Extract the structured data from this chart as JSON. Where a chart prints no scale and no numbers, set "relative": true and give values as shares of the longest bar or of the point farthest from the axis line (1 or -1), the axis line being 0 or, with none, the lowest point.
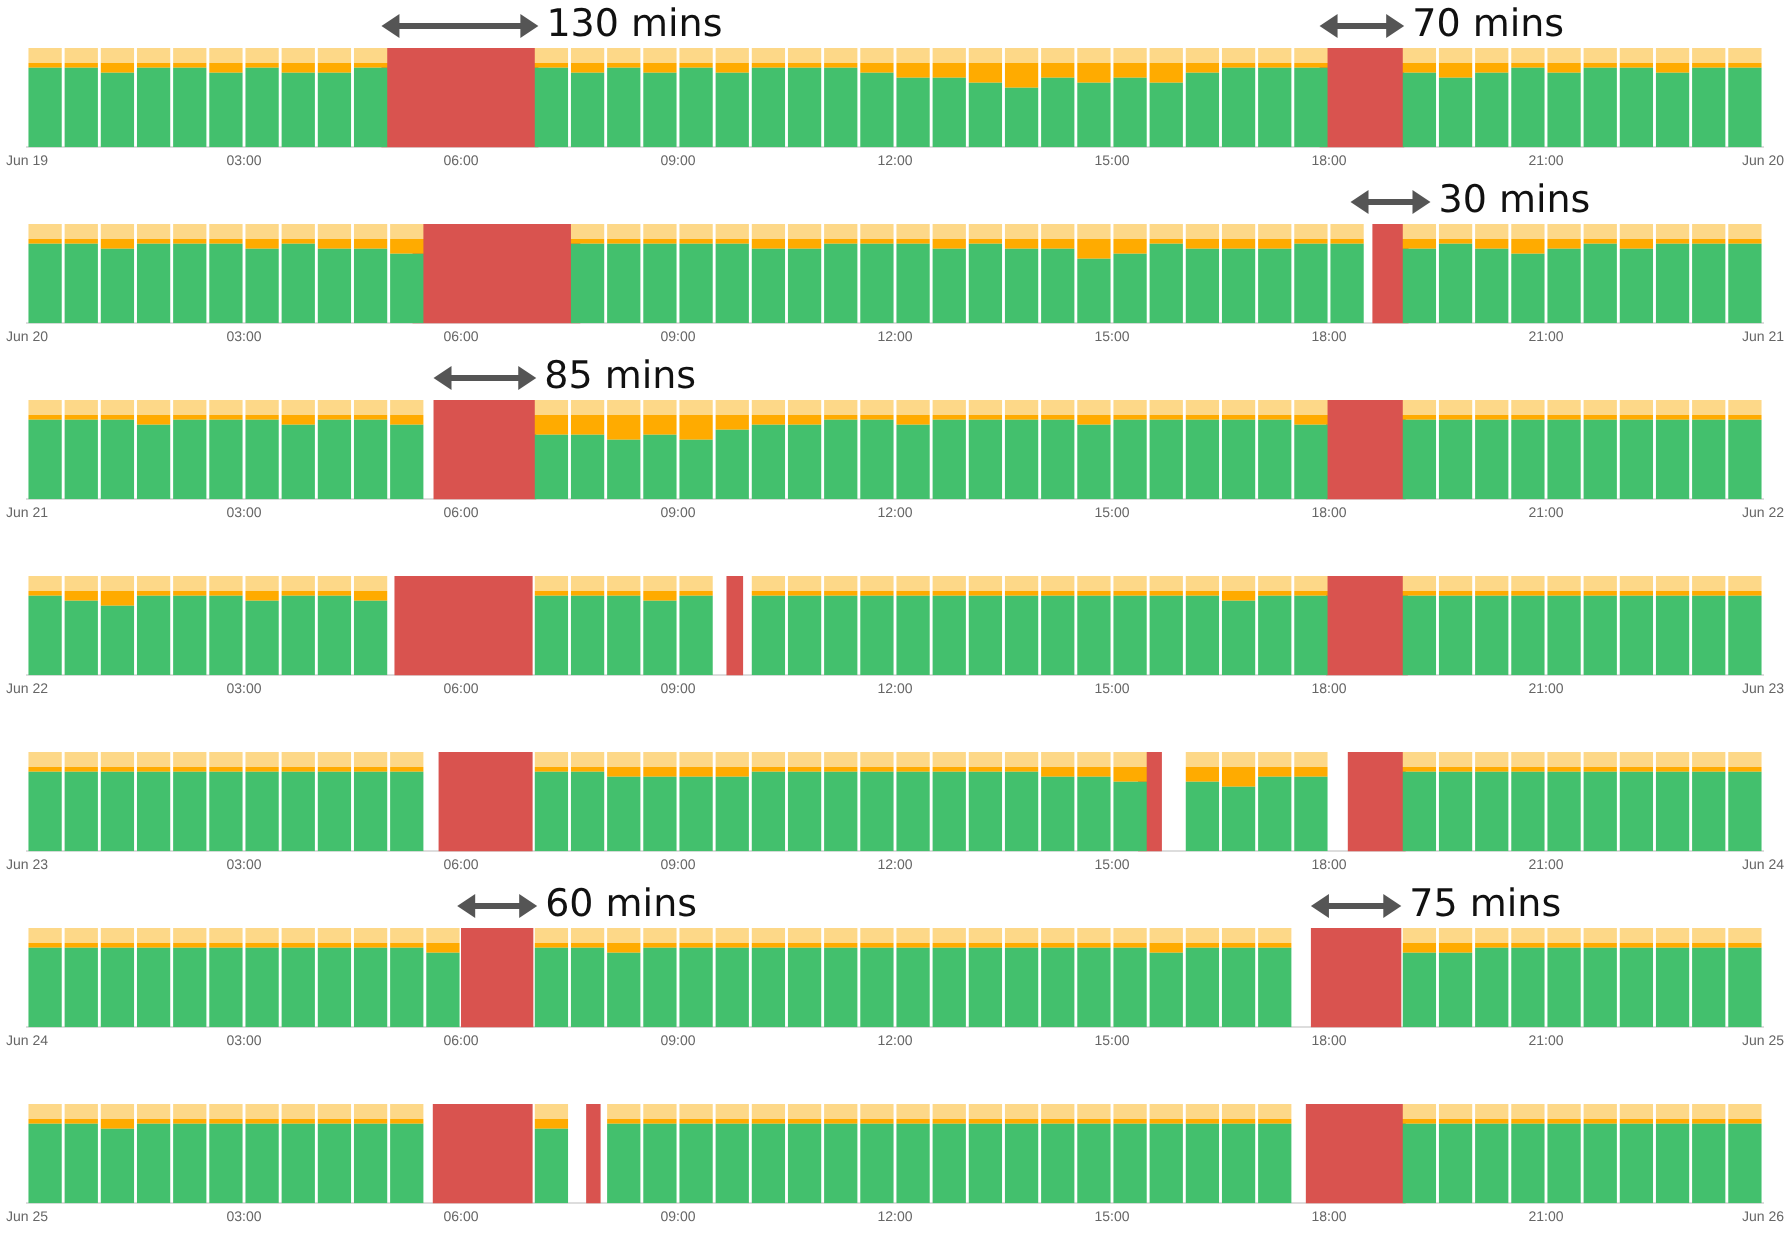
{
  "chart_data": [
    {
      "type": "bar",
      "stacked": true,
      "relative": true,
      "xlim": [
        0,
        24
      ],
      "xticks": [
        {
          "value": 0,
          "label": "Jun 19"
        },
        {
          "value": 3,
          "label": "03:00"
        },
        {
          "value": 6,
          "label": "06:00"
        },
        {
          "value": 9,
          "label": "09:00"
        },
        {
          "value": 12,
          "label": "12:00"
        },
        {
          "value": 15,
          "label": "15:00"
        },
        {
          "value": 18,
          "label": "18:00"
        },
        {
          "value": 21,
          "label": "21:00"
        },
        {
          "value": 24,
          "label": "Jun 20"
        }
      ],
      "x": [
        0.25,
        0.75,
        1.25,
        1.75,
        2.25,
        2.75,
        3.25,
        3.75,
        4.25,
        4.75,
        5.25,
        5.75,
        6.25,
        6.75,
        7.25,
        7.75,
        8.25,
        8.75,
        9.25,
        9.75,
        10.25,
        10.75,
        11.25,
        11.75,
        12.25,
        12.75,
        13.25,
        13.75,
        14.25,
        14.75,
        15.25,
        15.75,
        16.25,
        16.75,
        17.25,
        17.75,
        18.25,
        18.75,
        19.25,
        19.75,
        20.25,
        20.75,
        21.25,
        21.75,
        22.25,
        22.75,
        23.25,
        23.75
      ],
      "bands": [
        {
          "axis": "x",
          "from": 4.9,
          "to": 7.07,
          "label": "130 mins",
          "color": "#d9534f"
        },
        {
          "axis": "x",
          "from": 17.87,
          "to": 19.04,
          "label": "70 mins",
          "color": "#d9534f"
        }
      ],
      "series": [
        {
          "color": "#43c06d",
          "values": [
            0.8,
            0.8,
            0.75,
            0.8,
            0.8,
            0.75,
            0.8,
            0.75,
            0.75,
            0.8,
            null,
            null,
            null,
            null,
            0.8,
            0.75,
            0.8,
            0.75,
            0.8,
            0.75,
            0.8,
            0.8,
            0.8,
            0.75,
            0.7,
            0.7,
            0.65,
            0.6,
            0.7,
            0.65,
            0.7,
            0.65,
            0.75,
            0.8,
            0.8,
            0.8,
            null,
            null,
            0.75,
            0.7,
            0.75,
            0.8,
            0.75,
            0.8,
            0.8,
            0.75,
            0.8,
            0.8
          ]
        },
        {
          "color": "#ffab00",
          "values": [
            0.05,
            0.05,
            0.1,
            0.05,
            0.05,
            0.1,
            0.05,
            0.1,
            0.1,
            0.05,
            null,
            null,
            null,
            null,
            0.05,
            0.1,
            0.05,
            0.1,
            0.05,
            0.1,
            0.05,
            0.05,
            0.05,
            0.1,
            0.15,
            0.15,
            0.2,
            0.25,
            0.15,
            0.2,
            0.15,
            0.2,
            0.1,
            0.05,
            0.05,
            0.05,
            null,
            null,
            0.1,
            0.15,
            0.1,
            0.05,
            0.1,
            0.05,
            0.05,
            0.1,
            0.05,
            0.05
          ]
        },
        {
          "color": "#fdd888",
          "values": [
            0.15,
            0.15,
            0.15,
            0.15,
            0.15,
            0.15,
            0.15,
            0.15,
            0.15,
            0.15,
            null,
            null,
            null,
            null,
            0.15,
            0.15,
            0.15,
            0.15,
            0.15,
            0.15,
            0.15,
            0.15,
            0.15,
            0.15,
            0.15,
            0.15,
            0.15,
            0.15,
            0.15,
            0.15,
            0.15,
            0.15,
            0.15,
            0.15,
            0.15,
            0.15,
            null,
            null,
            0.15,
            0.15,
            0.15,
            0.15,
            0.15,
            0.15,
            0.15,
            0.15,
            0.15,
            0.15
          ]
        }
      ]
    },
    {
      "type": "bar",
      "stacked": true,
      "relative": true,
      "xlim": [
        0,
        24
      ],
      "xticks": [
        {
          "value": 0,
          "label": "Jun 20"
        },
        {
          "value": 3,
          "label": "03:00"
        },
        {
          "value": 6,
          "label": "06:00"
        },
        {
          "value": 9,
          "label": "09:00"
        },
        {
          "value": 12,
          "label": "12:00"
        },
        {
          "value": 15,
          "label": "15:00"
        },
        {
          "value": 18,
          "label": "18:00"
        },
        {
          "value": 21,
          "label": "21:00"
        },
        {
          "value": 24,
          "label": "Jun 21"
        }
      ],
      "x": [
        0.25,
        0.75,
        1.25,
        1.75,
        2.25,
        2.75,
        3.25,
        3.75,
        4.25,
        4.75,
        5.25,
        5.75,
        6.25,
        6.75,
        7.25,
        7.75,
        8.25,
        8.75,
        9.25,
        9.75,
        10.25,
        10.75,
        11.25,
        11.75,
        12.25,
        12.75,
        13.25,
        13.75,
        14.25,
        14.75,
        15.25,
        15.75,
        16.25,
        16.75,
        17.25,
        17.75,
        18.25,
        18.75,
        19.25,
        19.75,
        20.25,
        20.75,
        21.25,
        21.75,
        22.25,
        22.75,
        23.25,
        23.75
      ],
      "bands": [
        {
          "axis": "x",
          "from": 5.33,
          "to": 7.65,
          "color": "#d9534f"
        },
        {
          "axis": "x",
          "from": 18.6,
          "to": 19.1,
          "label": "30 mins",
          "color": "#d9534f"
        }
      ],
      "series": [
        {
          "color": "#43c06d",
          "values": [
            0.8,
            0.8,
            0.75,
            0.8,
            0.8,
            0.8,
            0.75,
            0.8,
            0.75,
            0.75,
            0.7,
            null,
            null,
            null,
            null,
            0.8,
            0.8,
            0.8,
            0.8,
            0.8,
            0.75,
            0.75,
            0.8,
            0.8,
            0.8,
            0.75,
            0.8,
            0.75,
            0.75,
            0.65,
            0.7,
            0.8,
            0.75,
            0.75,
            0.75,
            0.8,
            0.8,
            null,
            0.75,
            0.8,
            0.75,
            0.7,
            0.75,
            0.8,
            0.75,
            0.8,
            0.8,
            0.8
          ]
        },
        {
          "color": "#ffab00",
          "values": [
            0.05,
            0.05,
            0.1,
            0.05,
            0.05,
            0.05,
            0.1,
            0.05,
            0.1,
            0.1,
            0.15,
            null,
            null,
            null,
            null,
            0.05,
            0.05,
            0.05,
            0.05,
            0.05,
            0.1,
            0.1,
            0.05,
            0.05,
            0.05,
            0.1,
            0.05,
            0.1,
            0.1,
            0.2,
            0.15,
            0.05,
            0.1,
            0.1,
            0.1,
            0.05,
            0.05,
            null,
            0.1,
            0.05,
            0.1,
            0.15,
            0.1,
            0.05,
            0.1,
            0.05,
            0.05,
            0.05
          ]
        },
        {
          "color": "#fdd888",
          "values": [
            0.15,
            0.15,
            0.15,
            0.15,
            0.15,
            0.15,
            0.15,
            0.15,
            0.15,
            0.15,
            0.15,
            null,
            null,
            null,
            null,
            0.15,
            0.15,
            0.15,
            0.15,
            0.15,
            0.15,
            0.15,
            0.15,
            0.15,
            0.15,
            0.15,
            0.15,
            0.15,
            0.15,
            0.15,
            0.15,
            0.15,
            0.15,
            0.15,
            0.15,
            0.15,
            0.15,
            null,
            0.15,
            0.15,
            0.15,
            0.15,
            0.15,
            0.15,
            0.15,
            0.15,
            0.15,
            0.15
          ]
        }
      ]
    },
    {
      "type": "bar",
      "stacked": true,
      "relative": true,
      "xlim": [
        0,
        24
      ],
      "xticks": [
        {
          "value": 0,
          "label": "Jun 21"
        },
        {
          "value": 3,
          "label": "03:00"
        },
        {
          "value": 6,
          "label": "06:00"
        },
        {
          "value": 9,
          "label": "09:00"
        },
        {
          "value": 12,
          "label": "12:00"
        },
        {
          "value": 15,
          "label": "15:00"
        },
        {
          "value": 18,
          "label": "18:00"
        },
        {
          "value": 21,
          "label": "21:00"
        },
        {
          "value": 24,
          "label": "Jun 22"
        }
      ],
      "x": [
        0.25,
        0.75,
        1.25,
        1.75,
        2.25,
        2.75,
        3.25,
        3.75,
        4.25,
        4.75,
        5.25,
        5.75,
        6.25,
        6.75,
        7.25,
        7.75,
        8.25,
        8.75,
        9.25,
        9.75,
        10.25,
        10.75,
        11.25,
        11.75,
        12.25,
        12.75,
        13.25,
        13.75,
        14.25,
        14.75,
        15.25,
        15.75,
        16.25,
        16.75,
        17.25,
        17.75,
        18.25,
        18.75,
        19.25,
        19.75,
        20.25,
        20.75,
        21.25,
        21.75,
        22.25,
        22.75,
        23.25,
        23.75
      ],
      "bands": [
        {
          "axis": "x",
          "from": 5.62,
          "to": 7.04,
          "label": "85 mins",
          "color": "#d9534f"
        },
        {
          "axis": "x",
          "from": 17.96,
          "to": 19.06,
          "color": "#d9534f"
        }
      ],
      "series": [
        {
          "color": "#43c06d",
          "values": [
            0.8,
            0.8,
            0.8,
            0.75,
            0.8,
            0.8,
            0.8,
            0.75,
            0.8,
            0.8,
            0.75,
            null,
            null,
            null,
            0.65,
            0.65,
            0.6,
            0.65,
            0.6,
            0.7,
            0.75,
            0.75,
            0.8,
            0.8,
            0.75,
            0.8,
            0.8,
            0.8,
            0.8,
            0.75,
            0.8,
            0.8,
            0.8,
            0.8,
            0.8,
            0.75,
            null,
            null,
            0.8,
            0.8,
            0.8,
            0.8,
            0.8,
            0.8,
            0.8,
            0.8,
            0.8,
            0.8
          ]
        },
        {
          "color": "#ffab00",
          "values": [
            0.05,
            0.05,
            0.05,
            0.1,
            0.05,
            0.05,
            0.05,
            0.1,
            0.05,
            0.05,
            0.1,
            null,
            null,
            null,
            0.2,
            0.2,
            0.25,
            0.2,
            0.25,
            0.15,
            0.1,
            0.1,
            0.05,
            0.05,
            0.1,
            0.05,
            0.05,
            0.05,
            0.05,
            0.1,
            0.05,
            0.05,
            0.05,
            0.05,
            0.05,
            0.1,
            null,
            null,
            0.05,
            0.05,
            0.05,
            0.05,
            0.05,
            0.05,
            0.05,
            0.05,
            0.05,
            0.05
          ]
        },
        {
          "color": "#fdd888",
          "values": [
            0.15,
            0.15,
            0.15,
            0.15,
            0.15,
            0.15,
            0.15,
            0.15,
            0.15,
            0.15,
            0.15,
            null,
            null,
            null,
            0.15,
            0.15,
            0.15,
            0.15,
            0.15,
            0.15,
            0.15,
            0.15,
            0.15,
            0.15,
            0.15,
            0.15,
            0.15,
            0.15,
            0.15,
            0.15,
            0.15,
            0.15,
            0.15,
            0.15,
            0.15,
            0.15,
            null,
            null,
            0.15,
            0.15,
            0.15,
            0.15,
            0.15,
            0.15,
            0.15,
            0.15,
            0.15,
            0.15
          ]
        }
      ]
    },
    {
      "type": "bar",
      "stacked": true,
      "relative": true,
      "xlim": [
        0,
        24
      ],
      "xticks": [
        {
          "value": 0,
          "label": "Jun 22"
        },
        {
          "value": 3,
          "label": "03:00"
        },
        {
          "value": 6,
          "label": "06:00"
        },
        {
          "value": 9,
          "label": "09:00"
        },
        {
          "value": 12,
          "label": "12:00"
        },
        {
          "value": 15,
          "label": "15:00"
        },
        {
          "value": 18,
          "label": "18:00"
        },
        {
          "value": 21,
          "label": "21:00"
        },
        {
          "value": 24,
          "label": "Jun 23"
        }
      ],
      "x": [
        0.25,
        0.75,
        1.25,
        1.75,
        2.25,
        2.75,
        3.25,
        3.75,
        4.25,
        4.75,
        5.25,
        5.75,
        6.25,
        6.75,
        7.25,
        7.75,
        8.25,
        8.75,
        9.25,
        9.75,
        10.25,
        10.75,
        11.25,
        11.75,
        12.25,
        12.75,
        13.25,
        13.75,
        14.25,
        14.75,
        15.25,
        15.75,
        16.25,
        16.75,
        17.25,
        17.75,
        18.25,
        18.75,
        19.25,
        19.75,
        20.25,
        20.75,
        21.25,
        21.75,
        22.25,
        22.75,
        23.25,
        23.75
      ],
      "bands": [
        {
          "axis": "x",
          "from": 5.08,
          "to": 6.99,
          "color": "#d9534f"
        },
        {
          "axis": "x",
          "from": 9.67,
          "to": 9.9,
          "color": "#d9534f"
        },
        {
          "axis": "x",
          "from": 17.96,
          "to": 19.09,
          "color": "#d9534f"
        }
      ],
      "series": [
        {
          "color": "#43c06d",
          "values": [
            0.8,
            0.75,
            0.7,
            0.8,
            0.8,
            0.8,
            0.75,
            0.8,
            0.8,
            0.75,
            null,
            null,
            null,
            null,
            0.8,
            0.8,
            0.8,
            0.75,
            0.8,
            null,
            0.8,
            0.8,
            0.8,
            0.8,
            0.8,
            0.8,
            0.8,
            0.8,
            0.8,
            0.8,
            0.8,
            0.8,
            0.8,
            0.75,
            0.8,
            0.8,
            null,
            null,
            0.8,
            0.8,
            0.8,
            0.8,
            0.8,
            0.8,
            0.8,
            0.8,
            0.8,
            0.8
          ]
        },
        {
          "color": "#ffab00",
          "values": [
            0.05,
            0.1,
            0.15,
            0.05,
            0.05,
            0.05,
            0.1,
            0.05,
            0.05,
            0.1,
            null,
            null,
            null,
            null,
            0.05,
            0.05,
            0.05,
            0.1,
            0.05,
            null,
            0.05,
            0.05,
            0.05,
            0.05,
            0.05,
            0.05,
            0.05,
            0.05,
            0.05,
            0.05,
            0.05,
            0.05,
            0.05,
            0.1,
            0.05,
            0.05,
            null,
            null,
            0.05,
            0.05,
            0.05,
            0.05,
            0.05,
            0.05,
            0.05,
            0.05,
            0.05,
            0.05
          ]
        },
        {
          "color": "#fdd888",
          "values": [
            0.15,
            0.15,
            0.15,
            0.15,
            0.15,
            0.15,
            0.15,
            0.15,
            0.15,
            0.15,
            null,
            null,
            null,
            null,
            0.15,
            0.15,
            0.15,
            0.15,
            0.15,
            null,
            0.15,
            0.15,
            0.15,
            0.15,
            0.15,
            0.15,
            0.15,
            0.15,
            0.15,
            0.15,
            0.15,
            0.15,
            0.15,
            0.15,
            0.15,
            0.15,
            null,
            null,
            0.15,
            0.15,
            0.15,
            0.15,
            0.15,
            0.15,
            0.15,
            0.15,
            0.15,
            0.15
          ]
        }
      ]
    },
    {
      "type": "bar",
      "stacked": true,
      "relative": true,
      "xlim": [
        0,
        24
      ],
      "xticks": [
        {
          "value": 0,
          "label": "Jun 23"
        },
        {
          "value": 3,
          "label": "03:00"
        },
        {
          "value": 6,
          "label": "06:00"
        },
        {
          "value": 9,
          "label": "09:00"
        },
        {
          "value": 12,
          "label": "12:00"
        },
        {
          "value": 15,
          "label": "15:00"
        },
        {
          "value": 18,
          "label": "18:00"
        },
        {
          "value": 21,
          "label": "21:00"
        },
        {
          "value": 24,
          "label": "Jun 24"
        }
      ],
      "x": [
        0.25,
        0.75,
        1.25,
        1.75,
        2.25,
        2.75,
        3.25,
        3.75,
        4.25,
        4.75,
        5.25,
        5.75,
        6.25,
        6.75,
        7.25,
        7.75,
        8.25,
        8.75,
        9.25,
        9.75,
        10.25,
        10.75,
        11.25,
        11.75,
        12.25,
        12.75,
        13.25,
        13.75,
        14.25,
        14.75,
        15.25,
        15.75,
        16.25,
        16.75,
        17.25,
        17.75,
        18.25,
        18.75,
        19.25,
        19.75,
        20.25,
        20.75,
        21.25,
        21.75,
        22.25,
        22.75,
        23.25,
        23.75
      ],
      "bands": [
        {
          "axis": "x",
          "from": 5.69,
          "to": 6.99,
          "color": "#d9534f"
        },
        {
          "axis": "x",
          "from": 15.36,
          "to": 15.69,
          "color": "#d9534f"
        },
        {
          "axis": "x",
          "from": 18.26,
          "to": 19.06,
          "color": "#d9534f"
        }
      ],
      "series": [
        {
          "color": "#43c06d",
          "values": [
            0.8,
            0.8,
            0.8,
            0.8,
            0.8,
            0.8,
            0.8,
            0.8,
            0.8,
            0.8,
            0.8,
            null,
            null,
            null,
            0.8,
            0.8,
            0.75,
            0.75,
            0.75,
            0.75,
            0.8,
            0.8,
            0.8,
            0.8,
            0.8,
            0.8,
            0.8,
            0.8,
            0.75,
            0.75,
            0.7,
            null,
            0.7,
            0.65,
            0.75,
            0.75,
            null,
            null,
            0.8,
            0.8,
            0.8,
            0.8,
            0.8,
            0.8,
            0.8,
            0.8,
            0.8,
            0.8
          ]
        },
        {
          "color": "#ffab00",
          "values": [
            0.05,
            0.05,
            0.05,
            0.05,
            0.05,
            0.05,
            0.05,
            0.05,
            0.05,
            0.05,
            0.05,
            null,
            null,
            null,
            0.05,
            0.05,
            0.1,
            0.1,
            0.1,
            0.1,
            0.05,
            0.05,
            0.05,
            0.05,
            0.05,
            0.05,
            0.05,
            0.05,
            0.1,
            0.1,
            0.15,
            null,
            0.15,
            0.2,
            0.1,
            0.1,
            null,
            null,
            0.05,
            0.05,
            0.05,
            0.05,
            0.05,
            0.05,
            0.05,
            0.05,
            0.05,
            0.05
          ]
        },
        {
          "color": "#fdd888",
          "values": [
            0.15,
            0.15,
            0.15,
            0.15,
            0.15,
            0.15,
            0.15,
            0.15,
            0.15,
            0.15,
            0.15,
            null,
            null,
            null,
            0.15,
            0.15,
            0.15,
            0.15,
            0.15,
            0.15,
            0.15,
            0.15,
            0.15,
            0.15,
            0.15,
            0.15,
            0.15,
            0.15,
            0.15,
            0.15,
            0.15,
            null,
            0.15,
            0.15,
            0.15,
            0.15,
            null,
            null,
            0.15,
            0.15,
            0.15,
            0.15,
            0.15,
            0.15,
            0.15,
            0.15,
            0.15,
            0.15
          ]
        }
      ]
    },
    {
      "type": "bar",
      "stacked": true,
      "relative": true,
      "xlim": [
        0,
        24
      ],
      "xticks": [
        {
          "value": 0,
          "label": "Jun 24"
        },
        {
          "value": 3,
          "label": "03:00"
        },
        {
          "value": 6,
          "label": "06:00"
        },
        {
          "value": 9,
          "label": "09:00"
        },
        {
          "value": 12,
          "label": "12:00"
        },
        {
          "value": 15,
          "label": "15:00"
        },
        {
          "value": 18,
          "label": "18:00"
        },
        {
          "value": 21,
          "label": "21:00"
        },
        {
          "value": 24,
          "label": "Jun 25"
        }
      ],
      "x": [
        0.25,
        0.75,
        1.25,
        1.75,
        2.25,
        2.75,
        3.25,
        3.75,
        4.25,
        4.75,
        5.25,
        5.75,
        6.25,
        6.75,
        7.25,
        7.75,
        8.25,
        8.75,
        9.25,
        9.75,
        10.25,
        10.75,
        11.25,
        11.75,
        12.25,
        12.75,
        13.25,
        13.75,
        14.25,
        14.75,
        15.25,
        15.75,
        16.25,
        16.75,
        17.25,
        17.75,
        18.25,
        18.75,
        19.25,
        19.75,
        20.25,
        20.75,
        21.25,
        21.75,
        22.25,
        22.75,
        23.25,
        23.75
      ],
      "bands": [
        {
          "axis": "x",
          "from": 6.0,
          "to": 7.0,
          "label": "60 mins",
          "color": "#d9534f"
        },
        {
          "axis": "x",
          "from": 17.75,
          "to": 19.0,
          "label": "75 mins",
          "color": "#d9534f"
        }
      ],
      "series": [
        {
          "color": "#43c06d",
          "values": [
            0.8,
            0.8,
            0.8,
            0.8,
            0.8,
            0.8,
            0.8,
            0.8,
            0.8,
            0.8,
            0.8,
            0.75,
            null,
            null,
            0.8,
            0.8,
            0.75,
            0.8,
            0.8,
            0.8,
            0.8,
            0.8,
            0.8,
            0.8,
            0.8,
            0.8,
            0.8,
            0.8,
            0.8,
            0.8,
            0.8,
            0.75,
            0.8,
            0.8,
            0.8,
            null,
            null,
            null,
            0.75,
            0.75,
            0.8,
            0.8,
            0.8,
            0.8,
            0.8,
            0.8,
            0.8,
            0.8
          ]
        },
        {
          "color": "#ffab00",
          "values": [
            0.05,
            0.05,
            0.05,
            0.05,
            0.05,
            0.05,
            0.05,
            0.05,
            0.05,
            0.05,
            0.05,
            0.1,
            null,
            null,
            0.05,
            0.05,
            0.1,
            0.05,
            0.05,
            0.05,
            0.05,
            0.05,
            0.05,
            0.05,
            0.05,
            0.05,
            0.05,
            0.05,
            0.05,
            0.05,
            0.05,
            0.1,
            0.05,
            0.05,
            0.05,
            null,
            null,
            null,
            0.1,
            0.1,
            0.05,
            0.05,
            0.05,
            0.05,
            0.05,
            0.05,
            0.05,
            0.05
          ]
        },
        {
          "color": "#fdd888",
          "values": [
            0.15,
            0.15,
            0.15,
            0.15,
            0.15,
            0.15,
            0.15,
            0.15,
            0.15,
            0.15,
            0.15,
            0.15,
            null,
            null,
            0.15,
            0.15,
            0.15,
            0.15,
            0.15,
            0.15,
            0.15,
            0.15,
            0.15,
            0.15,
            0.15,
            0.15,
            0.15,
            0.15,
            0.15,
            0.15,
            0.15,
            0.15,
            0.15,
            0.15,
            0.15,
            null,
            null,
            null,
            0.15,
            0.15,
            0.15,
            0.15,
            0.15,
            0.15,
            0.15,
            0.15,
            0.15,
            0.15
          ]
        }
      ]
    },
    {
      "type": "bar",
      "stacked": true,
      "relative": true,
      "xlim": [
        0,
        24
      ],
      "xticks": [
        {
          "value": 0,
          "label": "Jun 25"
        },
        {
          "value": 3,
          "label": "03:00"
        },
        {
          "value": 6,
          "label": "06:00"
        },
        {
          "value": 9,
          "label": "09:00"
        },
        {
          "value": 12,
          "label": "12:00"
        },
        {
          "value": 15,
          "label": "15:00"
        },
        {
          "value": 18,
          "label": "18:00"
        },
        {
          "value": 21,
          "label": "21:00"
        },
        {
          "value": 24,
          "label": "Jun 26"
        }
      ],
      "x": [
        0.25,
        0.75,
        1.25,
        1.75,
        2.25,
        2.75,
        3.25,
        3.75,
        4.25,
        4.75,
        5.25,
        5.75,
        6.25,
        6.75,
        7.25,
        7.75,
        8.25,
        8.75,
        9.25,
        9.75,
        10.25,
        10.75,
        11.25,
        11.75,
        12.25,
        12.75,
        13.25,
        13.75,
        14.25,
        14.75,
        15.25,
        15.75,
        16.25,
        16.75,
        17.25,
        17.75,
        18.25,
        18.75,
        19.25,
        19.75,
        20.25,
        20.75,
        21.25,
        21.75,
        22.25,
        22.75,
        23.25,
        23.75
      ],
      "bands": [
        {
          "axis": "x",
          "from": 5.61,
          "to": 6.99,
          "color": "#d9534f"
        },
        {
          "axis": "x",
          "from": 7.73,
          "to": 7.93,
          "color": "#d9534f"
        },
        {
          "axis": "x",
          "from": 17.68,
          "to": 19.06,
          "color": "#d9534f"
        }
      ],
      "series": [
        {
          "color": "#43c06d",
          "values": [
            0.8,
            0.8,
            0.75,
            0.8,
            0.8,
            0.8,
            0.8,
            0.8,
            0.8,
            0.8,
            0.8,
            null,
            null,
            null,
            0.75,
            null,
            0.8,
            0.8,
            0.8,
            0.8,
            0.8,
            0.8,
            0.8,
            0.8,
            0.8,
            0.8,
            0.8,
            0.8,
            0.8,
            0.8,
            0.8,
            0.8,
            0.8,
            0.8,
            0.8,
            null,
            null,
            null,
            0.8,
            0.8,
            0.8,
            0.8,
            0.8,
            0.8,
            0.8,
            0.8,
            0.8,
            0.8
          ]
        },
        {
          "color": "#ffab00",
          "values": [
            0.05,
            0.05,
            0.1,
            0.05,
            0.05,
            0.05,
            0.05,
            0.05,
            0.05,
            0.05,
            0.05,
            null,
            null,
            null,
            0.1,
            null,
            0.05,
            0.05,
            0.05,
            0.05,
            0.05,
            0.05,
            0.05,
            0.05,
            0.05,
            0.05,
            0.05,
            0.05,
            0.05,
            0.05,
            0.05,
            0.05,
            0.05,
            0.05,
            0.05,
            null,
            null,
            null,
            0.05,
            0.05,
            0.05,
            0.05,
            0.05,
            0.05,
            0.05,
            0.05,
            0.05,
            0.05
          ]
        },
        {
          "color": "#fdd888",
          "values": [
            0.15,
            0.15,
            0.15,
            0.15,
            0.15,
            0.15,
            0.15,
            0.15,
            0.15,
            0.15,
            0.15,
            null,
            null,
            null,
            0.15,
            null,
            0.15,
            0.15,
            0.15,
            0.15,
            0.15,
            0.15,
            0.15,
            0.15,
            0.15,
            0.15,
            0.15,
            0.15,
            0.15,
            0.15,
            0.15,
            0.15,
            0.15,
            0.15,
            0.15,
            null,
            null,
            null,
            0.15,
            0.15,
            0.15,
            0.15,
            0.15,
            0.15,
            0.15,
            0.15,
            0.15,
            0.15
          ]
        }
      ]
    }
  ]
}
